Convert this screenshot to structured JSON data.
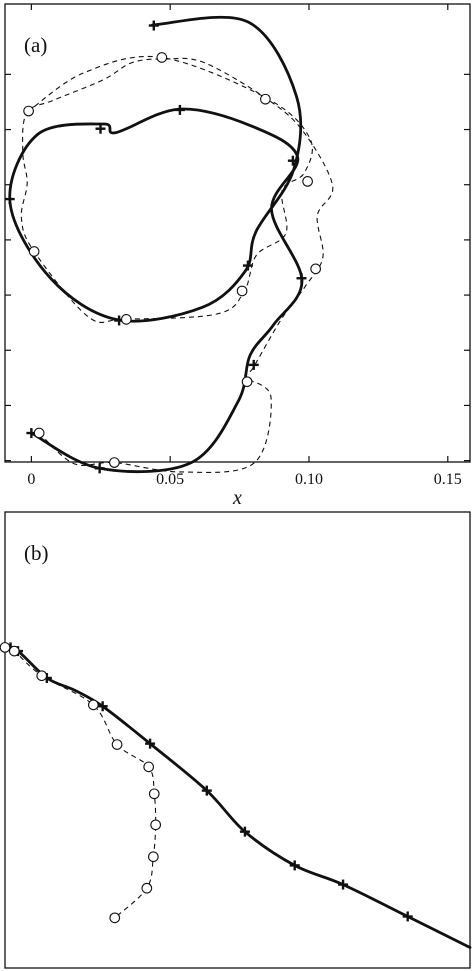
{
  "chart_data": [
    {
      "type": "line",
      "panel_label": "(a)",
      "xlabel": "x",
      "ylabel": "",
      "xlim": [
        -0.0095,
        0.158
      ],
      "x_ticks": [
        0,
        0.05,
        0.1,
        0.15
      ],
      "x_tick_labels": [
        "0",
        "0.05",
        "0.10",
        "0.15"
      ],
      "y_ticks": [
        -0.01,
        0.01,
        0.03,
        0.05,
        0.07,
        0.09,
        0.11,
        0.13
      ],
      "ylim": [
        -0.0105,
        0.1555
      ],
      "series": [
        {
          "style": "solid",
          "markers": "plus",
          "points": [
            [
              0.0,
              0.0
            ],
            [
              0.0246,
              -0.0128
            ],
            [
              0.0576,
              -0.0107
            ],
            [
              0.0745,
              0.0115
            ],
            [
              0.0788,
              0.0282
            ],
            [
              0.0873,
              0.0393
            ],
            [
              0.0975,
              0.0553
            ],
            [
              0.0865,
              0.0811
            ],
            [
              0.0959,
              0.1
            ],
            [
              0.0792,
              0.1113
            ],
            [
              0.0534,
              0.1174
            ],
            [
              0.0305,
              0.1089
            ],
            [
              0.026,
              0.112
            ],
            [
              0.0022,
              0.1082
            ],
            [
              -0.0077,
              0.0837
            ],
            [
              0.007,
              0.056
            ],
            [
              0.0313,
              0.041
            ],
            [
              0.0617,
              0.0456
            ],
            [
              0.0771,
              0.0588
            ],
            [
              0.0809,
              0.073
            ],
            [
              0.0945,
              0.0955
            ],
            [
              0.0955,
              0.122
            ],
            [
              0.078,
              0.149
            ],
            [
              0.0436,
              0.1479
            ]
          ],
          "marker_points": [
            [
              0.0,
              0.0
            ],
            [
              0.0246,
              -0.0128
            ],
            [
              0.0801,
              0.0247
            ],
            [
              0.0973,
              0.0561
            ],
            [
              0.078,
              0.0607
            ],
            [
              0.0316,
              0.0408
            ],
            [
              -0.0078,
              0.0848
            ],
            [
              0.0249,
              0.1103
            ],
            [
              0.0535,
              0.1171
            ],
            [
              0.0942,
              0.0987
            ],
            [
              0.0441,
              0.1477
            ]
          ]
        },
        {
          "style": "dashed",
          "markers": "circle",
          "points": [
            [
              0.0028,
              0.0
            ],
            [
              0.0154,
              -0.0111
            ],
            [
              0.0299,
              -0.0107
            ],
            [
              0.0535,
              -0.0141
            ],
            [
              0.0802,
              -0.0109
            ],
            [
              0.0863,
              0.0129
            ],
            [
              0.0772,
              0.0202
            ],
            [
              0.0799,
              0.0237
            ],
            [
              0.0898,
              0.0409
            ],
            [
              0.0987,
              0.0532
            ],
            [
              0.105,
              0.0638
            ],
            [
              0.103,
              0.0788
            ],
            [
              0.1085,
              0.0896
            ],
            [
              0.098,
              0.1092
            ],
            [
              0.085,
              0.121
            ],
            [
              0.0624,
              0.1342
            ],
            [
              0.0488,
              0.1356
            ],
            [
              0.0364,
              0.1343
            ],
            [
              0.026,
              0.1281
            ],
            [
              0.0082,
              0.1207
            ],
            [
              -0.0017,
              0.116
            ],
            [
              -0.0031,
              0.1016
            ],
            [
              -0.0015,
              0.0906
            ],
            [
              -0.0036,
              0.0779
            ],
            [
              0.001,
              0.0658
            ],
            [
              0.0204,
              0.0422
            ],
            [
              0.0335,
              0.0413
            ],
            [
              0.0667,
              0.0431
            ],
            [
              0.0766,
              0.0512
            ],
            [
              0.0811,
              0.0645
            ],
            [
              0.0917,
              0.0724
            ],
            [
              0.0903,
              0.0879
            ],
            [
              0.0983,
              0.0943
            ],
            [
              0.1004,
              0.1066
            ],
            [
              0.0854,
              0.121
            ],
            [
              0.047,
              0.1361
            ],
            [
              0.019,
              0.1306
            ],
            [
              -0.001,
              0.1167
            ]
          ],
          "marker_points": [
            [
              0.0028,
              0.0
            ],
            [
              0.0299,
              -0.0107
            ],
            [
              0.0777,
              0.0186
            ],
            [
              0.0759,
              0.0515
            ],
            [
              0.0342,
              0.0412
            ],
            [
              0.1024,
              0.0595
            ],
            [
              0.0995,
              0.0912
            ],
            [
              0.001,
              0.0658
            ],
            [
              0.0843,
              0.121
            ],
            [
              0.047,
              0.1361
            ],
            [
              -0.001,
              0.1167
            ]
          ]
        }
      ]
    },
    {
      "type": "line",
      "panel_label": "(b)",
      "xlabel": "",
      "ylabel": "",
      "xlim": [
        0,
        1
      ],
      "ylim": [
        0,
        1
      ],
      "series": [
        {
          "style": "solid",
          "markers": "plus",
          "points": [
            [
              0.0,
              0.703
            ],
            [
              0.028,
              0.695
            ],
            [
              0.09,
              0.636
            ],
            [
              0.15,
              0.609
            ],
            [
              0.21,
              0.574
            ],
            [
              0.312,
              0.492
            ],
            [
              0.434,
              0.389
            ],
            [
              0.516,
              0.299
            ],
            [
              0.623,
              0.225
            ],
            [
              0.727,
              0.183
            ],
            [
              0.866,
              0.113
            ],
            [
              1.0,
              0.045
            ]
          ],
          "marker_points": [
            [
              0.012,
              0.703
            ],
            [
              0.028,
              0.695
            ],
            [
              0.09,
              0.636
            ],
            [
              0.21,
              0.574
            ],
            [
              0.312,
              0.492
            ],
            [
              0.434,
              0.389
            ],
            [
              0.516,
              0.299
            ],
            [
              0.623,
              0.225
            ],
            [
              0.727,
              0.183
            ],
            [
              0.866,
              0.113
            ]
          ]
        },
        {
          "style": "dashed",
          "markers": "circle",
          "points": [
            [
              0.0,
              0.703
            ],
            [
              0.02,
              0.695
            ],
            [
              0.079,
              0.641
            ],
            [
              0.19,
              0.577
            ],
            [
              0.241,
              0.49
            ],
            [
              0.309,
              0.441
            ],
            [
              0.321,
              0.382
            ],
            [
              0.324,
              0.314
            ],
            [
              0.319,
              0.244
            ],
            [
              0.305,
              0.175
            ],
            [
              0.236,
              0.11
            ]
          ],
          "marker_points": [
            [
              0.0,
              0.703
            ],
            [
              0.02,
              0.695
            ],
            [
              0.079,
              0.641
            ],
            [
              0.19,
              0.577
            ],
            [
              0.241,
              0.49
            ],
            [
              0.309,
              0.441
            ],
            [
              0.321,
              0.382
            ],
            [
              0.324,
              0.314
            ],
            [
              0.319,
              0.244
            ],
            [
              0.305,
              0.175
            ],
            [
              0.236,
              0.11
            ]
          ]
        }
      ]
    }
  ]
}
